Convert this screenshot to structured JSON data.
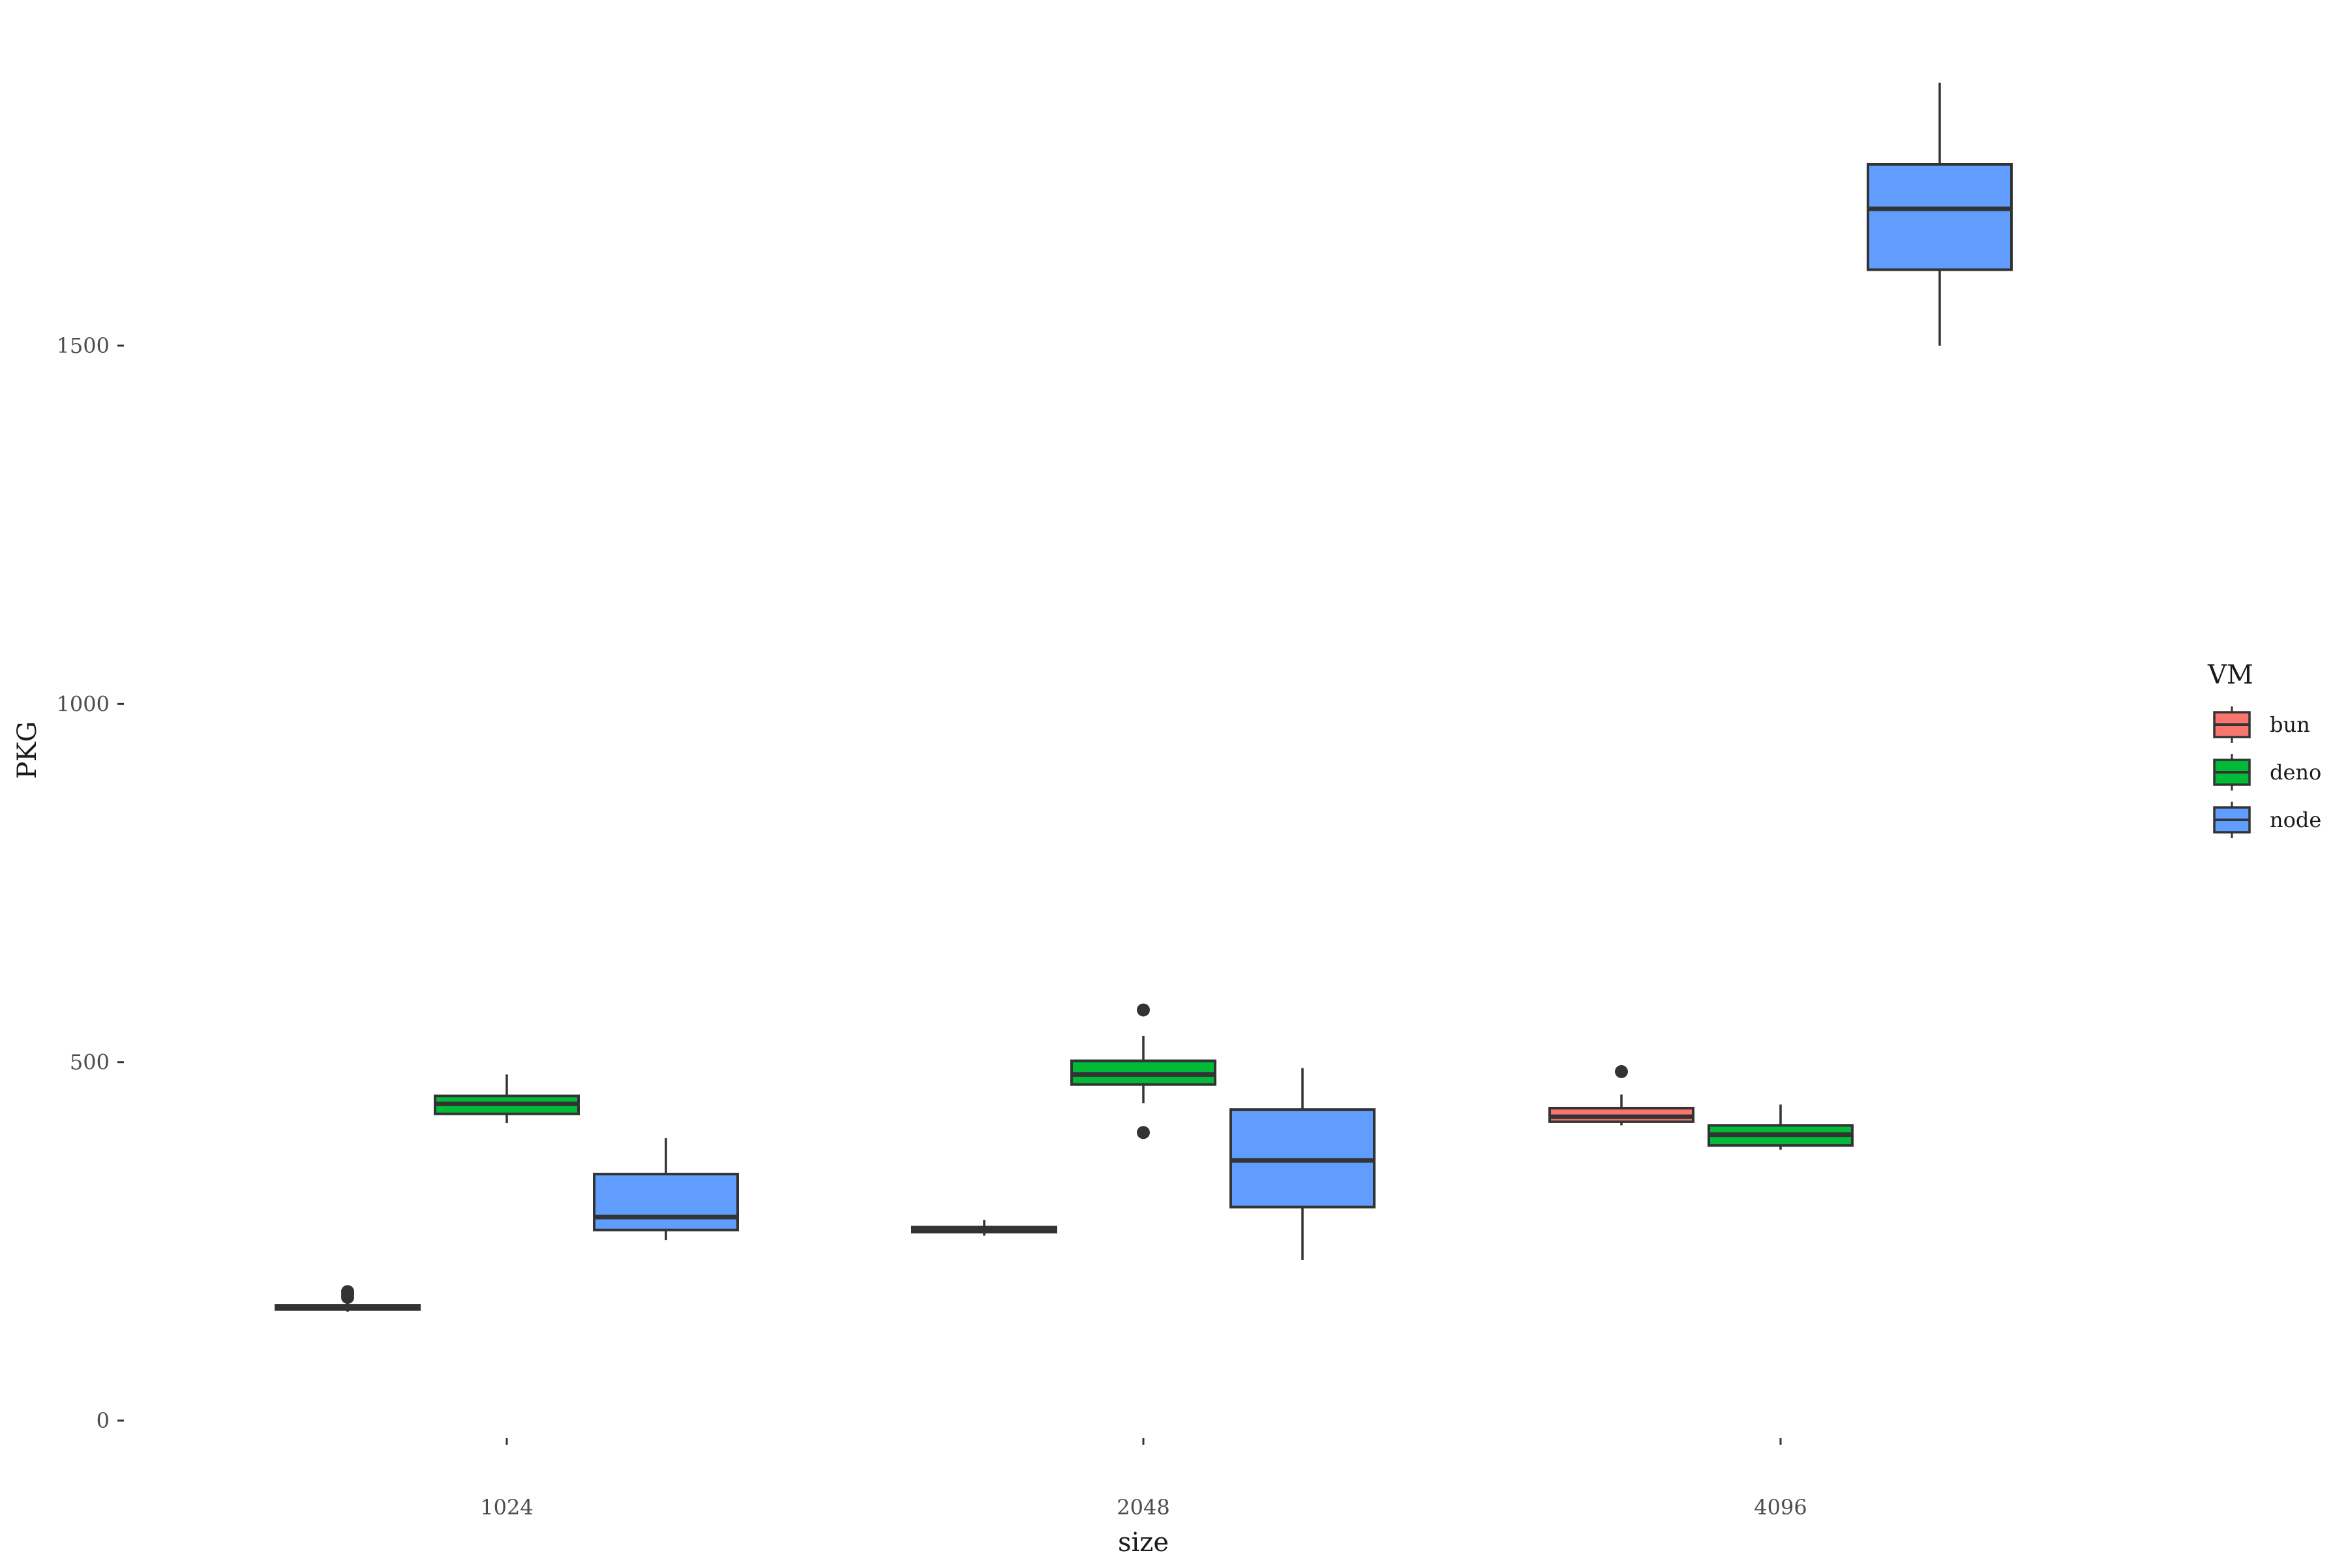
{
  "chart_data": {
    "type": "boxplot",
    "xlabel": "size",
    "ylabel": "PKG",
    "categories": [
      "1024",
      "2048",
      "4096"
    ],
    "y_ticks": [
      0,
      500,
      1000,
      1500
    ],
    "ylim": [
      -75,
      1875
    ],
    "grid": false,
    "legend": {
      "title": "VM",
      "placement": "right"
    },
    "series": [
      {
        "name": "bun",
        "color": "#F8766D",
        "boxes": [
          {
            "category": "1024",
            "whisker_low": 152,
            "q1": 155,
            "median": 158,
            "q3": 161,
            "whisker_high": 166,
            "outliers": [
              172,
              176,
              180
            ]
          },
          {
            "category": "2048",
            "whisker_low": 258,
            "q1": 263,
            "median": 267,
            "q3": 270,
            "whisker_high": 280,
            "outliers": []
          },
          {
            "category": "4096",
            "whisker_low": 412,
            "q1": 417,
            "median": 424,
            "q3": 436,
            "whisker_high": 455,
            "outliers": [
              487
            ]
          }
        ]
      },
      {
        "name": "deno",
        "color": "#00BA38",
        "boxes": [
          {
            "category": "1024",
            "whisker_low": 415,
            "q1": 428,
            "median": 442,
            "q3": 453,
            "whisker_high": 483,
            "outliers": []
          },
          {
            "category": "2048",
            "whisker_low": 443,
            "q1": 469,
            "median": 483,
            "q3": 502,
            "whisker_high": 537,
            "outliers": [
              402,
              573
            ]
          },
          {
            "category": "4096",
            "whisker_low": 378,
            "q1": 384,
            "median": 399,
            "q3": 412,
            "whisker_high": 441,
            "outliers": []
          }
        ]
      },
      {
        "name": "node",
        "color": "#619CFF",
        "boxes": [
          {
            "category": "1024",
            "whisker_low": 252,
            "q1": 266,
            "median": 284,
            "q3": 344,
            "whisker_high": 394,
            "outliers": []
          },
          {
            "category": "2048",
            "whisker_low": 224,
            "q1": 298,
            "median": 363,
            "q3": 434,
            "whisker_high": 492,
            "outliers": []
          },
          {
            "category": "4096",
            "whisker_low": 1500,
            "q1": 1606,
            "median": 1691,
            "q3": 1753,
            "whisker_high": 1867,
            "outliers": []
          }
        ]
      }
    ]
  }
}
